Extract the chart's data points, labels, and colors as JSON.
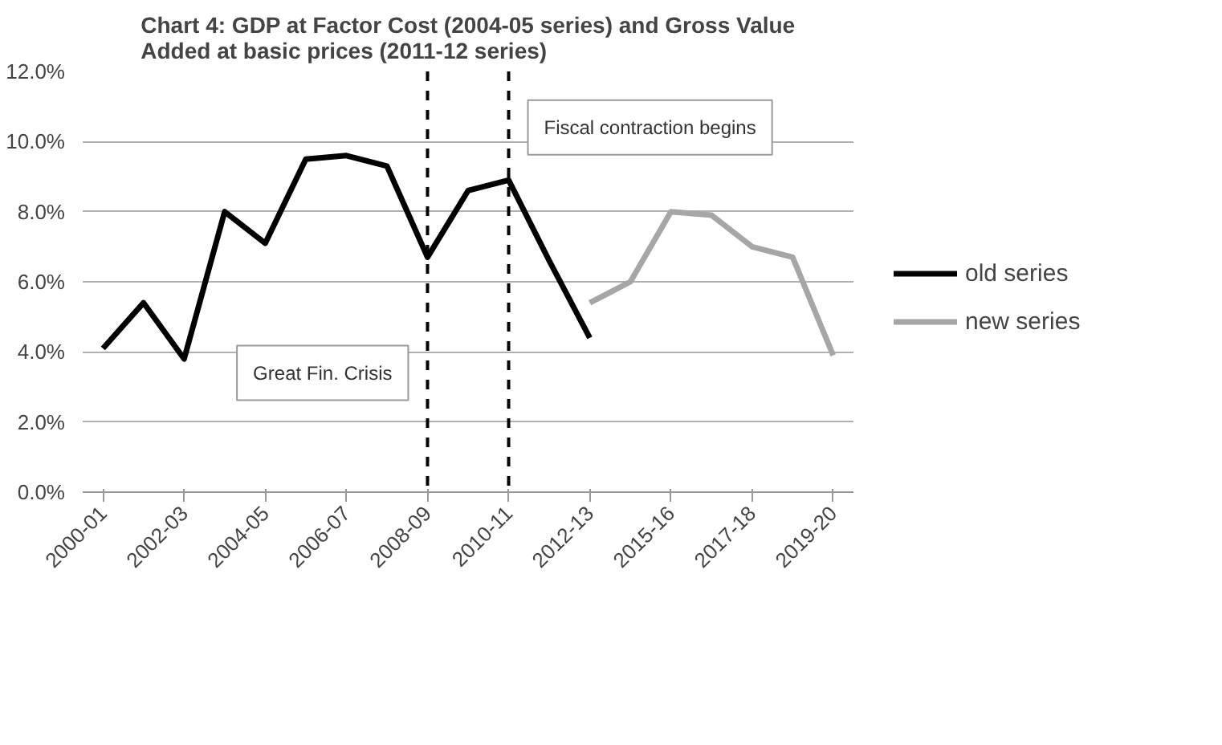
{
  "chart_data": {
    "type": "line",
    "title": "Chart 4: GDP at Factor Cost (2004-05 series) and Gross Value\nAdded at basic prices (2011-12 series)",
    "categories": [
      "2000-01",
      null,
      "2002-03",
      null,
      "2004-05",
      null,
      "2006-07",
      null,
      "2008-09",
      null,
      "2010-11",
      null,
      "2012-13",
      null,
      "2015-16",
      null,
      "2017-18",
      null,
      "2019-20"
    ],
    "series": [
      {
        "name": "old series",
        "color": "#000000",
        "values": [
          4.1,
          5.4,
          3.8,
          8.0,
          7.1,
          9.5,
          9.6,
          9.3,
          6.7,
          8.6,
          8.9,
          6.6,
          4.4,
          null,
          null,
          null,
          null,
          null,
          null
        ]
      },
      {
        "name": "new series",
        "color": "#a6a6a6",
        "values": [
          null,
          null,
          null,
          null,
          null,
          null,
          null,
          null,
          null,
          null,
          null,
          null,
          5.4,
          6.0,
          8.0,
          7.9,
          7.0,
          6.7,
          3.9
        ]
      }
    ],
    "ylim": [
      0,
      12
    ],
    "yticks": [
      {
        "value": 0,
        "label": "0.0%"
      },
      {
        "value": 2,
        "label": "2.0%"
      },
      {
        "value": 4,
        "label": "4.0%"
      },
      {
        "value": 6,
        "label": "6.0%"
      },
      {
        "value": 8,
        "label": "8.0%"
      },
      {
        "value": 10,
        "label": "10.0%"
      },
      {
        "value": 12,
        "label": "12.0%"
      }
    ],
    "ref_lines": [
      {
        "axis": "x",
        "value": "2008-09",
        "label": "Great Fin. Crisis",
        "color": "#000000",
        "line_style": "dashed"
      },
      {
        "axis": "x",
        "value": "2010-11",
        "label": "Fiscal contraction begins",
        "color": "#000000",
        "line_style": "dashed"
      }
    ],
    "grid": "y",
    "legend": "right",
    "line_style": "solid",
    "marker": "none"
  }
}
